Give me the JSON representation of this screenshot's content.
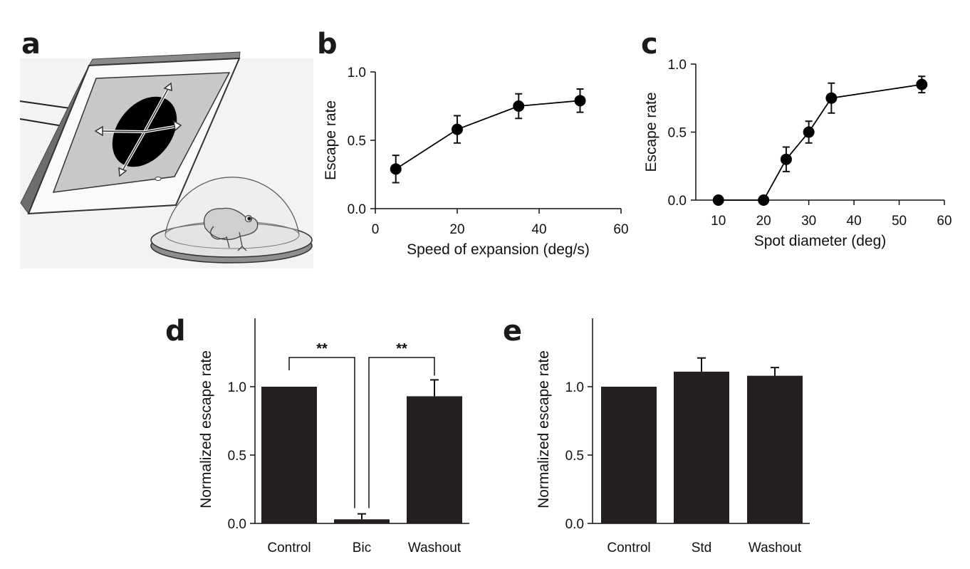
{
  "panels": {
    "a": {
      "letter": "a"
    },
    "b": {
      "letter": "b"
    },
    "c": {
      "letter": "c"
    },
    "d": {
      "letter": "d"
    },
    "e": {
      "letter": "e"
    }
  },
  "chart_data": [
    {
      "id": "b",
      "type": "scatter",
      "xlabel": "Speed of expansion (deg/s)",
      "ylabel": "Escape rate",
      "xlim": [
        0,
        60
      ],
      "ylim": [
        0,
        1.0
      ],
      "xticks": [
        "0",
        "20",
        "40",
        "60"
      ],
      "yticks": [
        "0.0",
        "0.5",
        "1.0"
      ],
      "x": [
        5,
        20,
        35,
        50
      ],
      "y": [
        0.29,
        0.58,
        0.75,
        0.79
      ],
      "yerr": [
        0.1,
        0.1,
        0.09,
        0.085
      ],
      "connected": true,
      "color": "#000000"
    },
    {
      "id": "c",
      "type": "scatter",
      "xlabel": "Spot diameter (deg)",
      "ylabel": "Escape rate",
      "xlim": [
        5,
        60
      ],
      "ylim": [
        0,
        1.0
      ],
      "xticks": [
        "10",
        "20",
        "30",
        "40",
        "50",
        "60"
      ],
      "yticks": [
        "0.0",
        "0.5",
        "1.0"
      ],
      "x": [
        10,
        20,
        25,
        30,
        35,
        55
      ],
      "y": [
        0.0,
        0.0,
        0.3,
        0.5,
        0.75,
        0.85
      ],
      "yerr": [
        0,
        0,
        0.09,
        0.08,
        0.11,
        0.06
      ],
      "connected": true,
      "color": "#000000"
    },
    {
      "id": "d",
      "type": "bar",
      "ylabel": "Normalized escape rate",
      "categories": [
        "Control",
        "Bic",
        "Washout"
      ],
      "values": [
        1.0,
        0.03,
        0.93
      ],
      "errors": [
        0,
        0.04,
        0.12
      ],
      "ylim": [
        0,
        1.5
      ],
      "yticks": [
        "0.0",
        "0.5",
        "1.0"
      ],
      "significance": [
        {
          "from": 0,
          "to": 1,
          "label": "**"
        },
        {
          "from": 1,
          "to": 2,
          "label": "**"
        }
      ],
      "color": "#231f20"
    },
    {
      "id": "e",
      "type": "bar",
      "ylabel": "Normalized escape rate",
      "categories": [
        "Control",
        "Std",
        "Washout"
      ],
      "values": [
        1.0,
        1.11,
        1.08
      ],
      "errors": [
        0,
        0.1,
        0.06
      ],
      "ylim": [
        0,
        1.5
      ],
      "yticks": [
        "0.0",
        "0.5",
        "1.0"
      ],
      "color": "#231f20"
    }
  ]
}
